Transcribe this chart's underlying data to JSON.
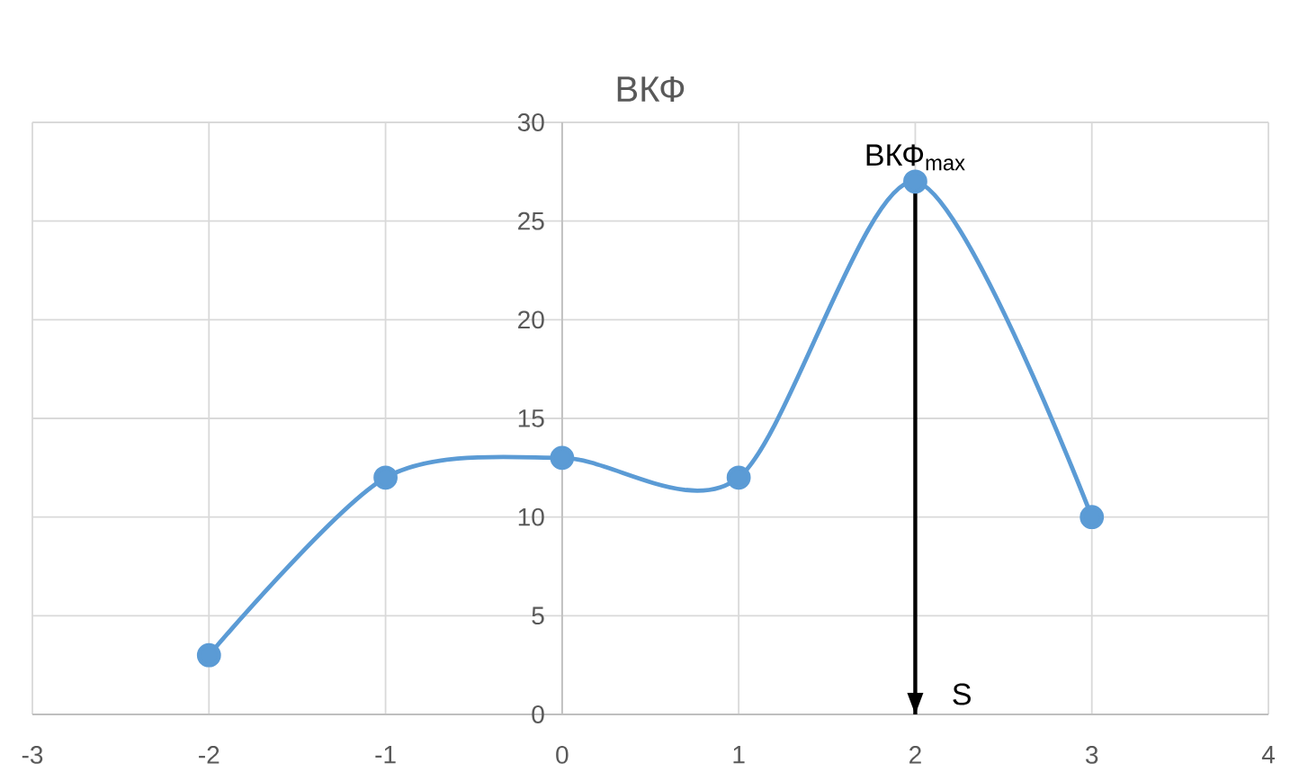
{
  "chart_data": {
    "type": "line",
    "title": "ВКФ",
    "x": [
      -2,
      -1,
      0,
      1,
      2,
      3
    ],
    "series": [
      {
        "color": "#5b9bd5",
        "values": [
          3,
          12,
          13,
          12,
          27,
          10
        ]
      }
    ],
    "xlim": [
      -3,
      4
    ],
    "xticks": [
      -3,
      -2,
      -1,
      0,
      1,
      2,
      3,
      4
    ],
    "ylim": [
      0,
      30
    ],
    "yticks": [
      0,
      5,
      10,
      15,
      20,
      25,
      30
    ],
    "grid": true,
    "marker": "circle",
    "line_style": "solid",
    "ref_lines": [
      {
        "axis": "x",
        "value": 2,
        "label": "S",
        "color": "#000000",
        "line_style": "solid"
      }
    ],
    "annotations": [
      {
        "text": "ВКФ$_{max}$",
        "x": 2,
        "y": 27
      }
    ]
  }
}
